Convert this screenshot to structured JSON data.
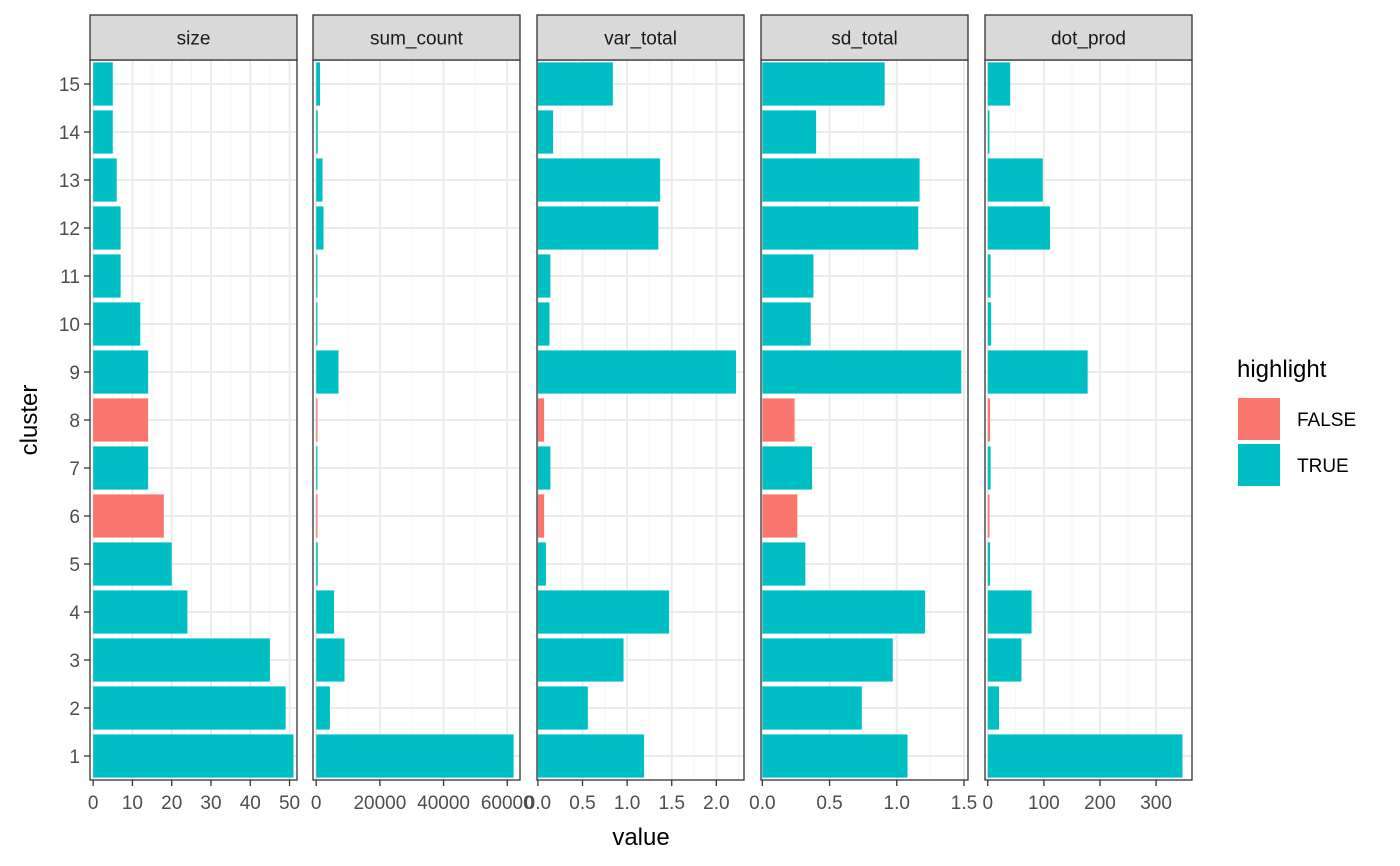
{
  "chart_data": {
    "type": "bar",
    "orientation": "horizontal",
    "faceted": true,
    "xlabel": "value",
    "ylabel": "cluster",
    "categories": [
      "1",
      "2",
      "3",
      "4",
      "5",
      "6",
      "7",
      "8",
      "9",
      "10",
      "11",
      "12",
      "13",
      "14",
      "15"
    ],
    "highlight": [
      "TRUE",
      "TRUE",
      "TRUE",
      "TRUE",
      "TRUE",
      "FALSE",
      "TRUE",
      "FALSE",
      "TRUE",
      "TRUE",
      "TRUE",
      "TRUE",
      "TRUE",
      "TRUE",
      "TRUE"
    ],
    "panels": [
      {
        "name": "size",
        "values": [
          51,
          49,
          45,
          24,
          20,
          18,
          14,
          14,
          14,
          12,
          7,
          7,
          6,
          5,
          5
        ],
        "xlim": [
          -0.8,
          51.9
        ],
        "ticks": [
          0,
          10,
          20,
          30,
          40,
          50
        ],
        "tick_labels": [
          "0",
          "10",
          "20",
          "30",
          "40",
          "50"
        ]
      },
      {
        "name": "sum_count",
        "values": [
          62000,
          4300,
          8900,
          5600,
          500,
          400,
          400,
          400,
          7000,
          400,
          400,
          2300,
          2000,
          500,
          1200
        ],
        "xlim": [
          -1000,
          64000
        ],
        "ticks": [
          0,
          20000,
          40000,
          60000
        ],
        "tick_labels": [
          "0",
          "20000",
          "40000",
          "60000"
        ]
      },
      {
        "name": "var_total",
        "values": [
          1.19,
          0.56,
          0.96,
          1.47,
          0.09,
          0.07,
          0.14,
          0.07,
          2.22,
          0.13,
          0.14,
          1.35,
          1.37,
          0.17,
          0.84
        ],
        "xlim": [
          -0.01,
          2.31
        ],
        "ticks": [
          0.0,
          0.5,
          1.0,
          1.5,
          2.0
        ],
        "tick_labels": [
          "0.0",
          "0.5",
          "1.0",
          "1.5",
          "2.0"
        ]
      },
      {
        "name": "sd_total",
        "values": [
          1.08,
          0.74,
          0.97,
          1.21,
          0.32,
          0.26,
          0.37,
          0.24,
          1.48,
          0.36,
          0.38,
          1.16,
          1.17,
          0.4,
          0.91
        ],
        "xlim": [
          -0.01,
          1.53
        ],
        "ticks": [
          0.0,
          0.5,
          1.0,
          1.5
        ],
        "tick_labels": [
          "0.0",
          "0.5",
          "1.0",
          "1.5"
        ]
      },
      {
        "name": "dot_prod",
        "values": [
          347,
          20,
          60,
          78,
          4,
          3,
          5,
          4,
          178,
          6,
          5,
          111,
          98,
          3,
          40
        ],
        "xlim": [
          -5,
          364
        ],
        "ticks": [
          0,
          100,
          200,
          300
        ],
        "tick_labels": [
          "0",
          "100",
          "200",
          "300"
        ]
      }
    ],
    "legend": {
      "title": "highlight",
      "position": "right",
      "items": [
        {
          "label": "FALSE",
          "color": "#F8766D"
        },
        {
          "label": "TRUE",
          "color": "#00BFC4"
        }
      ]
    },
    "grid": true,
    "colors": {
      "FALSE": "#F8766D",
      "TRUE": "#00BFC4",
      "panel_border": "#333333",
      "strip_fill": "#D9D9D9",
      "grid_major": "#EBEBEB",
      "grid_minor": "#F5F5F5"
    }
  }
}
